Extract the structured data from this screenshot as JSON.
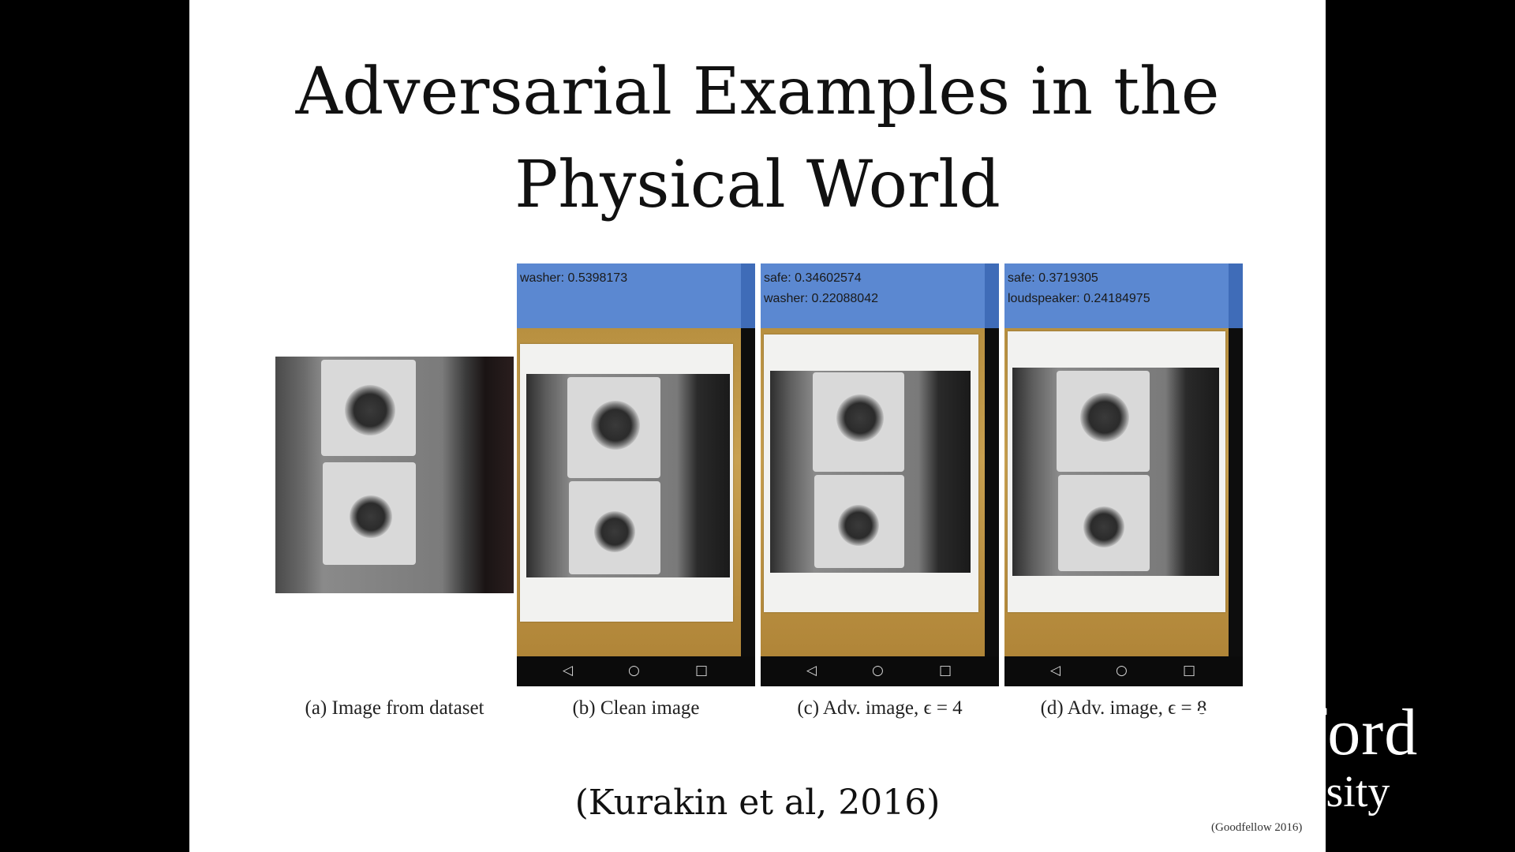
{
  "slide": {
    "title_line1": "Adversarial Examples in the",
    "title_line2": "Physical World",
    "citation": "(Kurakin et al, 2016)",
    "small_citation": "(Goodfellow 2016)"
  },
  "panels": [
    {
      "caption": "(a) Image from dataset"
    },
    {
      "caption": "(b) Clean image",
      "label1": "washer: 0.5398173",
      "label2": ""
    },
    {
      "caption": "(c) Adv. image, ϵ = 4",
      "label1": "safe: 0.34602574",
      "label2": "washer: 0.22088042"
    },
    {
      "caption": "(d) Adv. image, ϵ = 8",
      "label1": "safe: 0.3719305",
      "label2": "loudspeaker: 0.24184975"
    }
  ],
  "nav_icons": [
    "back-icon",
    "home-icon",
    "recents-icon"
  ],
  "logo": {
    "line1": "Stanford",
    "line2": "University"
  },
  "colors": {
    "label_bar": "#5b88d1",
    "background": "#000000",
    "slide": "#ffffff"
  }
}
